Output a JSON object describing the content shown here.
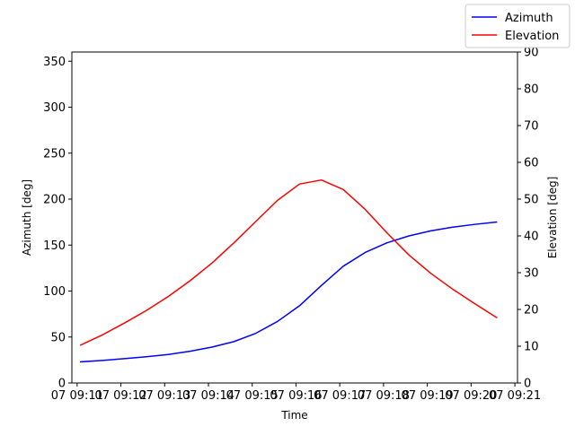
{
  "chart_data": {
    "type": "line",
    "xlabel": "Time",
    "ylabel_left": "Azimuth [deg]",
    "ylabel_right": "Elevation [deg]",
    "x_tick_labels": [
      "07 09:11",
      "07 09:12",
      "07 09:13",
      "07 09:14",
      "07 09:15",
      "07 09:16",
      "07 09:17",
      "07 09:18",
      "07 09:19",
      "07 09:20",
      "07 09:21"
    ],
    "x_tick_minutes": [
      11,
      12,
      13,
      14,
      15,
      16,
      17,
      18,
      19,
      20,
      21
    ],
    "xlim_minutes": [
      10.88,
      21.06
    ],
    "y_left_lim": [
      0,
      360
    ],
    "y_left_ticks": [
      0,
      50,
      100,
      150,
      200,
      250,
      300,
      350
    ],
    "y_right_lim": [
      0,
      90
    ],
    "y_right_ticks": [
      0,
      10,
      20,
      30,
      40,
      50,
      60,
      70,
      80,
      90
    ],
    "x_minutes": [
      11.08,
      11.58,
      12.08,
      12.58,
      13.08,
      13.58,
      14.08,
      14.58,
      15.08,
      15.58,
      16.08,
      16.58,
      17.08,
      17.58,
      18.08,
      18.58,
      19.08,
      19.58,
      20.08,
      20.58
    ],
    "legend": {
      "position": "top-right",
      "entries": [
        "Azimuth",
        "Elevation"
      ]
    },
    "series": [
      {
        "name": "Azimuth",
        "axis": "left",
        "color": "#0000ff",
        "values": [
          23,
          24.5,
          26.5,
          28.5,
          31,
          34.5,
          39,
          45,
          54,
          67,
          84,
          106,
          127,
          142,
          152.5,
          160,
          165.5,
          169.5,
          172.5,
          175
        ]
      },
      {
        "name": "Elevation",
        "axis": "right",
        "color": "#ff0000",
        "values": [
          10.3,
          13.1,
          16.3,
          19.7,
          23.5,
          27.8,
          32.6,
          38.1,
          43.9,
          49.7,
          54.1,
          55.2,
          52.6,
          47.2,
          40.8,
          34.8,
          29.8,
          25.5,
          21.6,
          17.8
        ]
      }
    ]
  }
}
